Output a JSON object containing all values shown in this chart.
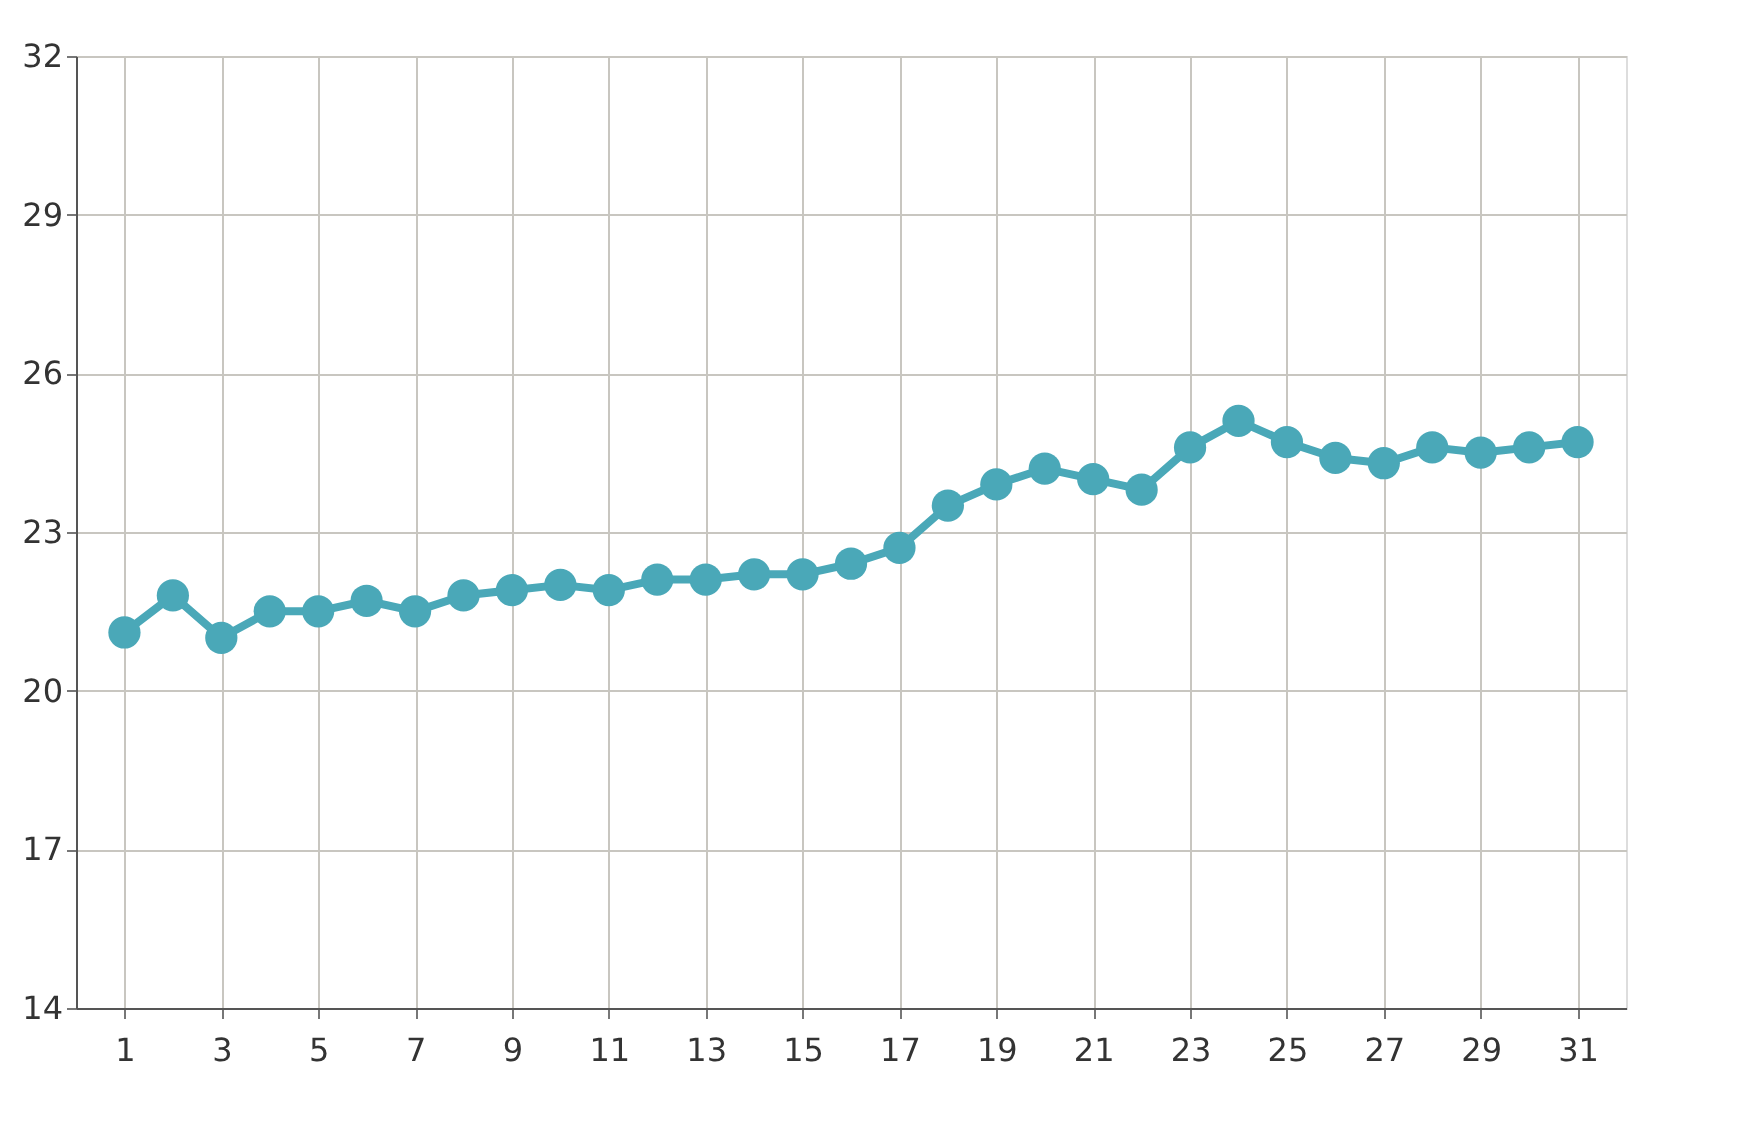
{
  "chart_data": {
    "type": "line",
    "x": [
      1,
      2,
      3,
      4,
      5,
      6,
      7,
      8,
      9,
      10,
      11,
      12,
      13,
      14,
      15,
      16,
      17,
      18,
      19,
      20,
      21,
      22,
      23,
      24,
      25,
      26,
      27,
      28,
      29,
      30,
      31
    ],
    "series": [
      {
        "color": "#4aa8b8",
        "values": [
          21.1,
          21.8,
          21.0,
          21.5,
          21.5,
          21.7,
          21.5,
          21.8,
          21.9,
          22.0,
          21.9,
          22.1,
          22.1,
          22.2,
          22.2,
          22.4,
          22.7,
          23.5,
          23.9,
          24.2,
          24.0,
          23.8,
          24.6,
          25.1,
          24.7,
          24.4,
          24.3,
          24.6,
          24.5,
          24.6,
          24.7
        ]
      }
    ],
    "xlim": [
      0,
      32
    ],
    "xticks": [
      1,
      3,
      5,
      7,
      9,
      11,
      13,
      15,
      17,
      19,
      21,
      23,
      25,
      27,
      29,
      31
    ],
    "ylim": [
      14,
      32
    ],
    "yticks": [
      14,
      17,
      20,
      23,
      26,
      29,
      32
    ],
    "grid": true,
    "marker": "circle",
    "line_style": "solid"
  }
}
